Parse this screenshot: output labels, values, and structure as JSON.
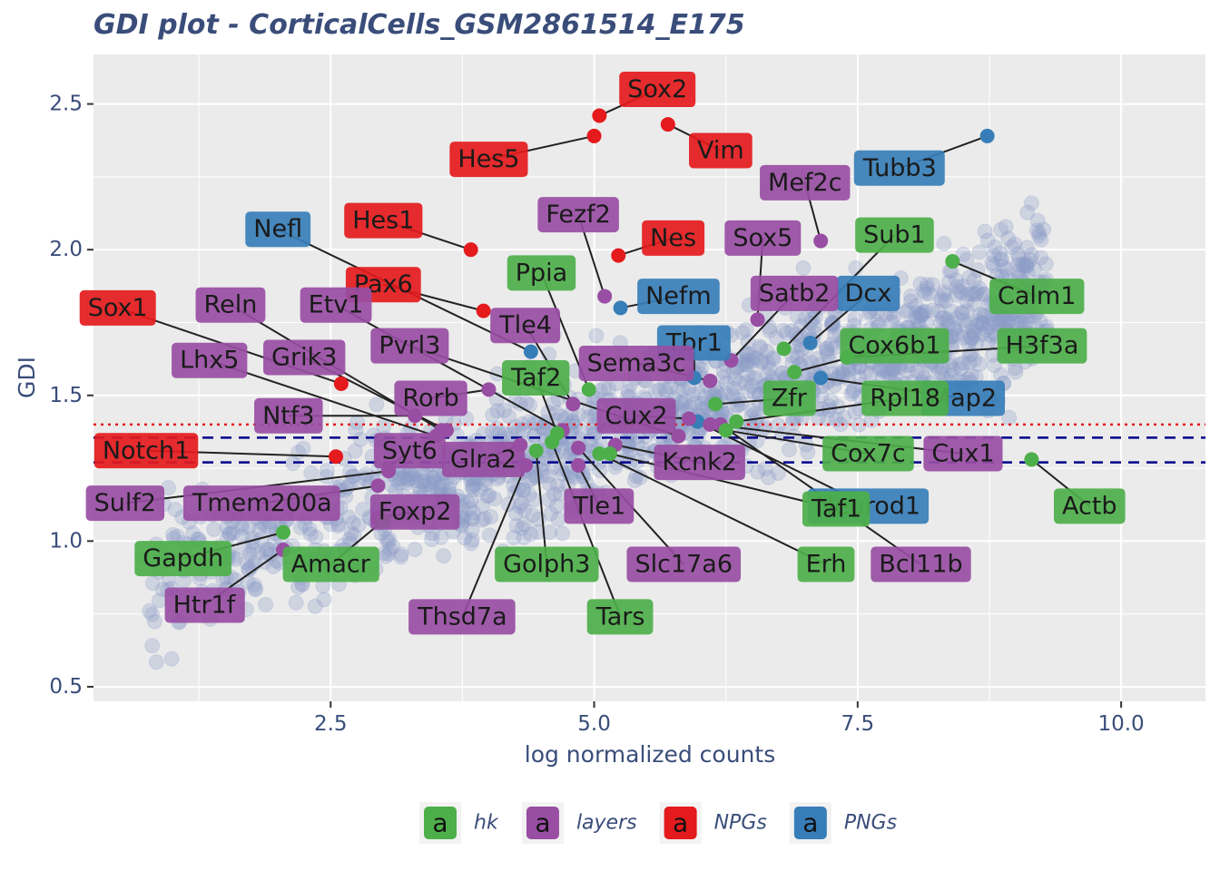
{
  "chart_data": {
    "type": "scatter",
    "title": "GDI plot - CorticalCells_GSM2861514_E175",
    "xlabel": "log normalized counts",
    "ylabel": "GDI",
    "xlim": [
      0.25,
      10.8
    ],
    "ylim": [
      0.45,
      2.67
    ],
    "x_ticks": [
      2.5,
      5.0,
      7.5,
      10.0
    ],
    "x_tick_labels": [
      "2.5",
      "5.0",
      "7.5",
      "10.0"
    ],
    "y_ticks": [
      0.5,
      1.0,
      1.5,
      2.0,
      2.5
    ],
    "y_tick_labels": [
      "0.5",
      "1.0",
      "1.5",
      "2.0",
      "2.5"
    ],
    "grid": true,
    "hlines": [
      {
        "y": 1.4,
        "style": "dotted",
        "color": "#e41a1c"
      },
      {
        "y": 1.355,
        "style": "dashed",
        "color": "#00008b"
      },
      {
        "y": 1.27,
        "style": "dashed",
        "color": "#00008b"
      }
    ],
    "legend": {
      "position": "bottom",
      "key_glyph": "a",
      "entries": [
        {
          "name": "hk",
          "color": "#4daf4a"
        },
        {
          "name": "layers",
          "color": "#984ea3"
        },
        {
          "name": "NPGs",
          "color": "#e41a1c"
        },
        {
          "name": "PNGs",
          "color": "#377eb8"
        }
      ]
    },
    "background_points_color": "#8c9bc6",
    "labeled_genes": [
      {
        "gene": "Sox2",
        "group": "NPGs",
        "x": 5.05,
        "y": 2.46,
        "lx": 5.6,
        "ly": 2.55
      },
      {
        "gene": "Vim",
        "group": "NPGs",
        "x": 5.7,
        "y": 2.43,
        "lx": 6.2,
        "ly": 2.34
      },
      {
        "gene": "Hes5",
        "group": "NPGs",
        "x": 5.0,
        "y": 2.39,
        "lx": 4.0,
        "ly": 2.31
      },
      {
        "gene": "Hes1",
        "group": "NPGs",
        "x": 3.83,
        "y": 2.0,
        "lx": 3.0,
        "ly": 2.1
      },
      {
        "gene": "Nes",
        "group": "NPGs",
        "x": 5.23,
        "y": 1.98,
        "lx": 5.75,
        "ly": 2.04
      },
      {
        "gene": "Pax6",
        "group": "NPGs",
        "x": 3.95,
        "y": 1.79,
        "lx": 3.0,
        "ly": 1.88
      },
      {
        "gene": "Sox1",
        "group": "NPGs",
        "x": 2.6,
        "y": 1.54,
        "lx": 0.48,
        "ly": 1.8
      },
      {
        "gene": "Notch1",
        "group": "NPGs",
        "x": 2.55,
        "y": 1.29,
        "lx": 0.75,
        "ly": 1.31
      },
      {
        "gene": "Tubb3",
        "group": "PNGs",
        "x": 8.73,
        "y": 2.39,
        "lx": 7.9,
        "ly": 2.28
      },
      {
        "gene": "Nefl",
        "group": "PNGs",
        "x": 4.4,
        "y": 1.65,
        "lx": 2.0,
        "ly": 2.07
      },
      {
        "gene": "Nefm",
        "group": "PNGs",
        "x": 5.25,
        "y": 1.8,
        "lx": 5.8,
        "ly": 1.84
      },
      {
        "gene": "Dcx",
        "group": "PNGs",
        "x": 7.05,
        "y": 1.68,
        "lx": 7.6,
        "ly": 1.85
      },
      {
        "gene": "Tbr1",
        "group": "PNGs",
        "x": 5.95,
        "y": 1.56,
        "lx": 5.95,
        "ly": 1.68
      },
      {
        "gene": "Map2",
        "group": "PNGs",
        "x": 7.15,
        "y": 1.56,
        "lx": 8.5,
        "ly": 1.49
      },
      {
        "gene": "Neurod1",
        "group": "PNGs",
        "x": 5.98,
        "y": 1.41,
        "lx": 7.6,
        "ly": 1.12
      },
      {
        "gene": "Mef2c",
        "group": "layers",
        "x": 7.15,
        "y": 2.03,
        "lx": 7.0,
        "ly": 2.23
      },
      {
        "gene": "Fezf2",
        "group": "layers",
        "x": 5.1,
        "y": 1.84,
        "lx": 4.85,
        "ly": 2.12
      },
      {
        "gene": "Sox5",
        "group": "layers",
        "x": 6.55,
        "y": 1.76,
        "lx": 6.6,
        "ly": 2.04
      },
      {
        "gene": "Satb2",
        "group": "layers",
        "x": 6.3,
        "y": 1.62,
        "lx": 6.9,
        "ly": 1.85
      },
      {
        "gene": "Tle4",
        "group": "layers",
        "x": 4.8,
        "y": 1.47,
        "lx": 4.35,
        "ly": 1.74
      },
      {
        "gene": "Sema3c",
        "group": "layers",
        "x": 6.1,
        "y": 1.55,
        "lx": 5.4,
        "ly": 1.61
      },
      {
        "gene": "Reln",
        "group": "layers",
        "x": 3.55,
        "y": 1.38,
        "lx": 1.55,
        "ly": 1.81
      },
      {
        "gene": "Etv1",
        "group": "layers",
        "x": 4.7,
        "y": 1.38,
        "lx": 2.55,
        "ly": 1.81
      },
      {
        "gene": "Lhx5",
        "group": "layers",
        "x": 3.5,
        "y": 1.36,
        "lx": 1.35,
        "ly": 1.62
      },
      {
        "gene": "Grik3",
        "group": "layers",
        "x": 3.6,
        "y": 1.38,
        "lx": 2.25,
        "ly": 1.63
      },
      {
        "gene": "Pvrl3",
        "group": "layers",
        "x": 5.8,
        "y": 1.36,
        "lx": 3.25,
        "ly": 1.67
      },
      {
        "gene": "Rorb",
        "group": "layers",
        "x": 4.0,
        "y": 1.52,
        "lx": 3.45,
        "ly": 1.49
      },
      {
        "gene": "Ntf3",
        "group": "layers",
        "x": 3.3,
        "y": 1.43,
        "lx": 2.1,
        "ly": 1.43
      },
      {
        "gene": "Cux2",
        "group": "layers",
        "x": 5.9,
        "y": 1.42,
        "lx": 5.4,
        "ly": 1.43
      },
      {
        "gene": "Cux1",
        "group": "layers",
        "x": 6.1,
        "y": 1.4,
        "lx": 8.5,
        "ly": 1.3
      },
      {
        "gene": "Kcnk2",
        "group": "layers",
        "x": 5.2,
        "y": 1.33,
        "lx": 6.0,
        "ly": 1.27
      },
      {
        "gene": "Syt6",
        "group": "layers",
        "x": 3.05,
        "y": 1.25,
        "lx": 3.25,
        "ly": 1.31
      },
      {
        "gene": "Glra2",
        "group": "layers",
        "x": 4.3,
        "y": 1.33,
        "lx": 3.95,
        "ly": 1.28
      },
      {
        "gene": "Tmem200a",
        "group": "layers",
        "x": 2.95,
        "y": 1.19,
        "lx": 1.85,
        "ly": 1.13
      },
      {
        "gene": "Sulf2",
        "group": "layers",
        "x": 3.05,
        "y": 1.24,
        "lx": 0.55,
        "ly": 1.13
      },
      {
        "gene": "Foxp2",
        "group": "layers",
        "x": 2.95,
        "y": 1.08,
        "lx": 3.3,
        "ly": 1.1
      },
      {
        "gene": "Tle1",
        "group": "layers",
        "x": 4.85,
        "y": 1.26,
        "lx": 5.05,
        "ly": 1.12
      },
      {
        "gene": "Slc17a6",
        "group": "layers",
        "x": 4.85,
        "y": 1.32,
        "lx": 5.85,
        "ly": 0.92
      },
      {
        "gene": "Bcl11b",
        "group": "layers",
        "x": 6.2,
        "y": 1.4,
        "lx": 8.1,
        "ly": 0.92
      },
      {
        "gene": "Thsd7a",
        "group": "layers",
        "x": 4.35,
        "y": 1.26,
        "lx": 3.75,
        "ly": 0.74
      },
      {
        "gene": "Htr1f",
        "group": "layers",
        "x": 2.05,
        "y": 0.97,
        "lx": 1.3,
        "ly": 0.78
      },
      {
        "gene": "Ppia",
        "group": "hk",
        "x": 4.95,
        "y": 1.52,
        "lx": 4.5,
        "ly": 1.92
      },
      {
        "gene": "Sub1",
        "group": "hk",
        "x": 6.8,
        "y": 1.66,
        "lx": 7.85,
        "ly": 2.05
      },
      {
        "gene": "Calm1",
        "group": "hk",
        "x": 8.4,
        "y": 1.96,
        "lx": 9.2,
        "ly": 1.84
      },
      {
        "gene": "Cox6b1",
        "group": "hk",
        "x": 6.9,
        "y": 1.58,
        "lx": 7.85,
        "ly": 1.67
      },
      {
        "gene": "H3f3a",
        "group": "hk",
        "x": 7.4,
        "y": 1.63,
        "lx": 9.25,
        "ly": 1.67
      },
      {
        "gene": "Taf2",
        "group": "hk",
        "x": 4.65,
        "y": 1.37,
        "lx": 4.45,
        "ly": 1.56
      },
      {
        "gene": "Zfr",
        "group": "hk",
        "x": 6.15,
        "y": 1.47,
        "lx": 6.85,
        "ly": 1.49
      },
      {
        "gene": "Rpl18",
        "group": "hk",
        "x": 6.35,
        "y": 1.41,
        "lx": 7.95,
        "ly": 1.49
      },
      {
        "gene": "Cox7c",
        "group": "hk",
        "x": 6.25,
        "y": 1.38,
        "lx": 7.6,
        "ly": 1.3
      },
      {
        "gene": "Actb",
        "group": "hk",
        "x": 9.15,
        "y": 1.28,
        "lx": 9.7,
        "ly": 1.12
      },
      {
        "gene": "Taf1",
        "group": "hk",
        "x": 5.15,
        "y": 1.3,
        "lx": 7.3,
        "ly": 1.11
      },
      {
        "gene": "Erh",
        "group": "hk",
        "x": 5.05,
        "y": 1.3,
        "lx": 7.2,
        "ly": 0.92
      },
      {
        "gene": "Golph3",
        "group": "hk",
        "x": 4.45,
        "y": 1.31,
        "lx": 4.55,
        "ly": 0.92
      },
      {
        "gene": "Tars",
        "group": "hk",
        "x": 4.6,
        "y": 1.34,
        "lx": 5.25,
        "ly": 0.74
      },
      {
        "gene": "Gapdh",
        "group": "hk",
        "x": 2.05,
        "y": 1.03,
        "lx": 1.1,
        "ly": 0.94
      },
      {
        "gene": "Amacr",
        "group": "hk",
        "x": 3.0,
        "y": 1.07,
        "lx": 2.5,
        "ly": 0.92
      }
    ]
  }
}
